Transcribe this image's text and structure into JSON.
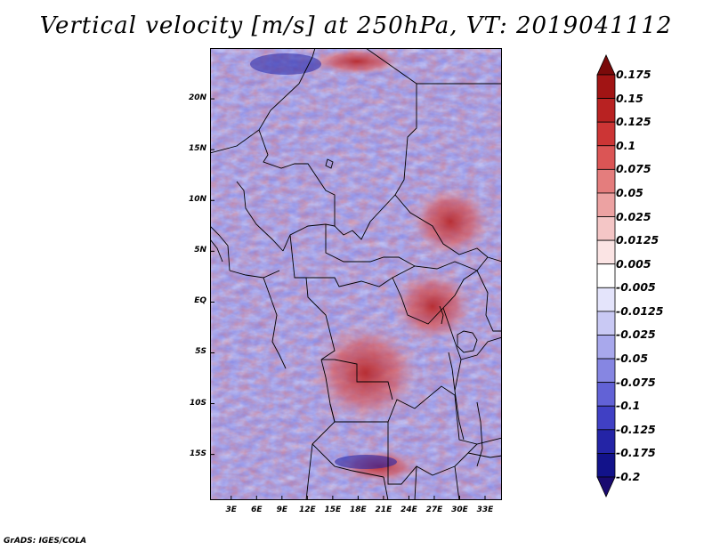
{
  "title": "Vertical velocity [m/s] at 250hPa, VT: 2019041112",
  "credit": "GrADS: IGES/COLA",
  "map": {
    "lat_labels": [
      "20N",
      "15N",
      "10N",
      "5N",
      "EQ",
      "5S",
      "10S",
      "15S"
    ],
    "lon_labels": [
      "3E",
      "6E",
      "9E",
      "12E",
      "15E",
      "18E",
      "21E",
      "24E",
      "27E",
      "30E",
      "33E"
    ],
    "lat_values": [
      20,
      15,
      10,
      5,
      0,
      -5,
      -10,
      -15
    ],
    "lon_values": [
      3,
      6,
      9,
      12,
      15,
      18,
      21,
      24,
      27,
      30,
      33
    ],
    "lon_range": [
      0.5,
      35
    ],
    "lat_range": [
      -19.5,
      25
    ]
  },
  "colorbar": {
    "labels": [
      "0.175",
      "0.15",
      "0.125",
      "0.1",
      "0.075",
      "0.05",
      "0.025",
      "0.0125",
      "0.005",
      "-0.005",
      "-0.0125",
      "-0.025",
      "-0.05",
      "-0.075",
      "-0.1",
      "-0.125",
      "-0.175",
      "-0.2"
    ],
    "colors": [
      "#7a0a0a",
      "#a11414",
      "#b82222",
      "#cc3535",
      "#db5555",
      "#e47d7d",
      "#eca2a2",
      "#f4c6c6",
      "#fbe4e4",
      "#ffffff",
      "#e4e4fb",
      "#c9c9f4",
      "#a8a8ec",
      "#8686e2",
      "#6262d6",
      "#4040c4",
      "#2424a6",
      "#12128a",
      "#1a0a70"
    ]
  }
}
